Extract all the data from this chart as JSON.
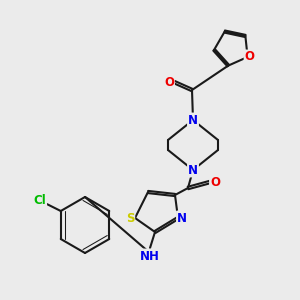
{
  "bg_color": "#ebebeb",
  "bond_color": "#1a1a1a",
  "bond_width": 1.5,
  "double_sep": 2.8,
  "atom_colors": {
    "N": "#0000ee",
    "O": "#ee0000",
    "S": "#cccc00",
    "Cl": "#00bb00",
    "H": "#00aaaa"
  },
  "font_size": 8.5
}
